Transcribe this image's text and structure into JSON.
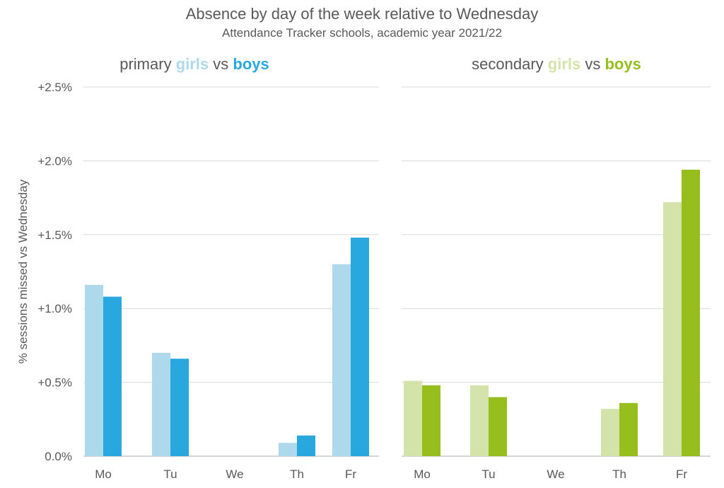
{
  "chart_data": {
    "type": "bar",
    "title": "Absence by day of the week relative to Wednesday",
    "subtitle": "Attendance Tracker schools, academic year 2021/22",
    "ylabel": "% sessions missed vs Wednesday",
    "ylim": [
      0,
      2.5
    ],
    "yticks": [
      {
        "value": 0,
        "label": "0.0%"
      },
      {
        "value": 0.5,
        "label": "+0.5%"
      },
      {
        "value": 1.0,
        "label": "+1.0%"
      },
      {
        "value": 1.5,
        "label": "+1.5%"
      },
      {
        "value": 2.0,
        "label": "+2.0%"
      },
      {
        "value": 2.5,
        "label": "+2.5%"
      }
    ],
    "grid": true,
    "panels": [
      {
        "id": "primary",
        "title_parts": [
          {
            "text": "primary ",
            "color": "#595959",
            "bold": false
          },
          {
            "text": "girls",
            "color": "#aed8eb",
            "bold": true
          },
          {
            "text": " vs ",
            "color": "#595959",
            "bold": false
          },
          {
            "text": "boys",
            "color": "#29a8e0",
            "bold": true
          }
        ],
        "categories": [
          "Mo",
          "Tu",
          "We",
          "Th",
          "Fr"
        ],
        "series": [
          {
            "name": "girls",
            "color": "#aed8eb",
            "values": [
              1.16,
              0.7,
              0,
              0.09,
              1.3
            ]
          },
          {
            "name": "boys",
            "color": "#29a8e0",
            "values": [
              1.08,
              0.66,
              0,
              0.14,
              1.48
            ]
          }
        ]
      },
      {
        "id": "secondary",
        "title_parts": [
          {
            "text": "secondary ",
            "color": "#595959",
            "bold": false
          },
          {
            "text": "girls",
            "color": "#d4e3a9",
            "bold": true
          },
          {
            "text": " vs ",
            "color": "#595959",
            "bold": false
          },
          {
            "text": "boys",
            "color": "#96bf1e",
            "bold": true
          }
        ],
        "categories": [
          "Mo",
          "Tu",
          "We",
          "Th",
          "Fr"
        ],
        "series": [
          {
            "name": "girls",
            "color": "#d4e3a9",
            "values": [
              0.51,
              0.48,
              0,
              0.32,
              1.72
            ]
          },
          {
            "name": "boys",
            "color": "#96bf1e",
            "values": [
              0.48,
              0.4,
              0,
              0.36,
              1.94
            ]
          }
        ]
      }
    ]
  }
}
